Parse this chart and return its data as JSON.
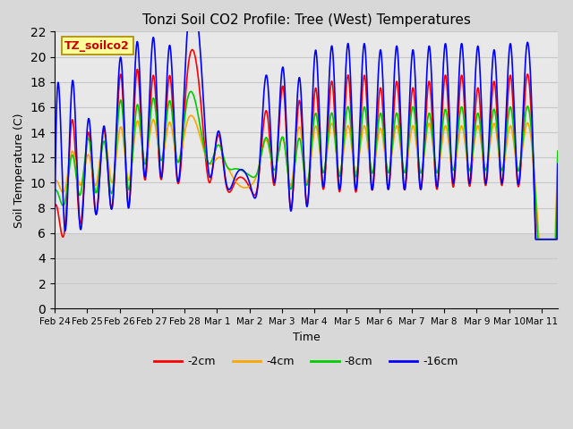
{
  "title": "Tonzi Soil CO2 Profile: Tree (West) Temperatures",
  "xlabel": "Time",
  "ylabel": "Soil Temperature (C)",
  "ylim": [
    0,
    22
  ],
  "yticks": [
    0,
    2,
    4,
    6,
    8,
    10,
    12,
    14,
    16,
    18,
    20,
    22
  ],
  "series_labels": [
    "-2cm",
    "-4cm",
    "-8cm",
    "-16cm"
  ],
  "series_colors": [
    "#ff0000",
    "#ffa500",
    "#00cc00",
    "#0000ff"
  ],
  "series_linewidths": [
    1.2,
    1.2,
    1.2,
    1.2
  ],
  "label_box_text": "TZ_soilco2",
  "label_box_color": "#ffff99",
  "label_box_text_color": "#cc0000",
  "plot_bg_color": "#d8d8d8",
  "active_bg_color": "#e8e8e8",
  "grid_color": "#c0c0c0",
  "n_days": 15.5,
  "n_points": 2000,
  "x_tick_labels": [
    "Feb 24",
    "Feb 25",
    "Feb 26",
    "Feb 27",
    "Feb 28",
    "Mar 1",
    "Mar 2",
    "Mar 3",
    "Mar 4",
    "Mar 5",
    "Mar 6",
    "Mar 7",
    "Mar 8",
    "Mar 9",
    "Mar 10",
    "Mar 11"
  ],
  "x_tick_positions": [
    0,
    1,
    2,
    3,
    4,
    5,
    6,
    7,
    8,
    9,
    10,
    11,
    12,
    13,
    14,
    15
  ],
  "peaks_day": [
    0.1,
    0.55,
    1.05,
    1.5,
    2.05,
    2.55,
    3.05,
    3.55,
    4.05,
    4.55,
    5.55,
    6.55,
    7.05,
    7.55,
    8.05,
    8.55,
    9.05,
    9.55,
    10.05,
    10.55
  ],
  "valleys_day": [
    0.35,
    0.8,
    1.3,
    1.8,
    2.3,
    2.8,
    3.3,
    3.8,
    4.8,
    5.05,
    6.05,
    6.8,
    7.3,
    7.8,
    8.3,
    8.8,
    9.3,
    9.8,
    10.3
  ],
  "base_min": 6.2,
  "base_max": 10.5,
  "peak_16cm": [
    17.3,
    18.1,
    15.1,
    14.5,
    19.8,
    21.2,
    21.5,
    20.9,
    20.5,
    18.0,
    14.1,
    10.4,
    9.6,
    18.3,
    19.0,
    18.3,
    20.5,
    20.8,
    21.0,
    21.0
  ],
  "peak_2cm": [
    8.0,
    15.0,
    14.0,
    14.2,
    18.5,
    19.0,
    18.5,
    18.5,
    17.5,
    15.0,
    13.8,
    10.0,
    9.4,
    15.5,
    17.5,
    16.5,
    17.5,
    18.0,
    18.5,
    18.5
  ],
  "peak_4cm": [
    10.1,
    12.5,
    12.2,
    13.8,
    14.4,
    14.9,
    15.0,
    14.8,
    14.5,
    13.0,
    12.0,
    10.2,
    9.8,
    13.3,
    13.5,
    14.4,
    14.5,
    14.7,
    14.5,
    14.5
  ],
  "peak_8cm": [
    9.3,
    12.2,
    13.5,
    13.3,
    16.5,
    16.2,
    16.7,
    16.5,
    16.0,
    13.5,
    13.0,
    11.1,
    10.5,
    13.5,
    13.5,
    13.5,
    15.5,
    15.5,
    16.0,
    16.0
  ]
}
